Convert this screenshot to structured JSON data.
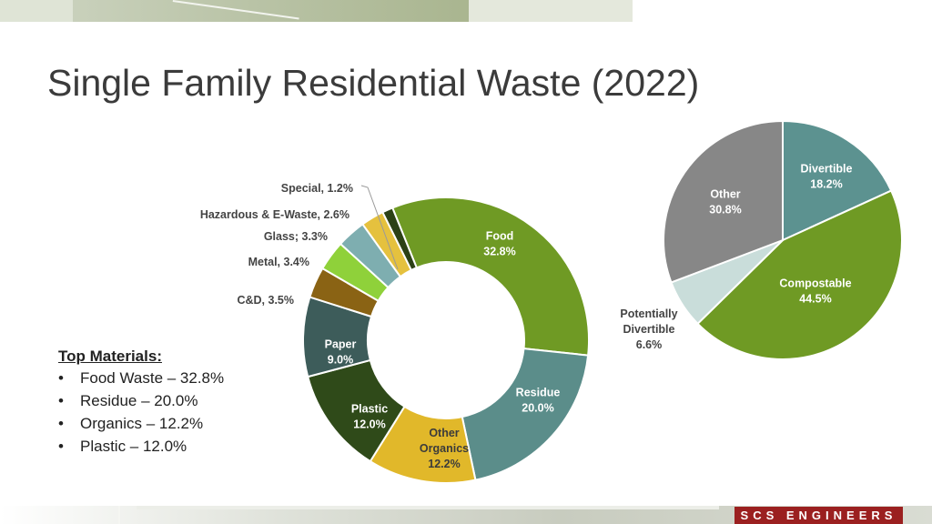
{
  "title": "Single Family Residential Waste (2022)",
  "top_materials": {
    "heading": "Top Materials:",
    "items": [
      "Food Waste – 32.8%",
      "Residue – 20.0%",
      "Organics – 12.2%",
      "Plastic – 12.0%"
    ]
  },
  "brand": "SCS ENGINEERS",
  "chart_data": [
    {
      "type": "pie",
      "variant": "donut",
      "slices": [
        {
          "name": "Food",
          "label": "Food\n32.8%",
          "value": 32.8,
          "color": "#6f9a24",
          "label_style": "inside-light"
        },
        {
          "name": "Residue",
          "label": "Residue\n20.0%",
          "value": 20.0,
          "color": "#5b8d8a",
          "label_style": "inside-light"
        },
        {
          "name": "Other Organics",
          "label": "Other\nOrganics\n12.2%",
          "value": 12.2,
          "color": "#e1b82a",
          "label_style": "inside-dark"
        },
        {
          "name": "Plastic",
          "label": "Plastic\n12.0%",
          "value": 12.0,
          "color": "#2f4a19",
          "label_style": "inside-light"
        },
        {
          "name": "Paper",
          "label": "Paper\n9.0%",
          "value": 9.0,
          "color": "#3d5c5a",
          "label_style": "inside-light"
        },
        {
          "name": "C&D",
          "label": "C&D, 3.5%",
          "value": 3.5,
          "color": "#8a6314",
          "label_style": "outside"
        },
        {
          "name": "Metal",
          "label": "Metal, 3.4%",
          "value": 3.4,
          "color": "#8fd13a",
          "label_style": "outside"
        },
        {
          "name": "Glass",
          "label": "Glass; 3.3%",
          "value": 3.3,
          "color": "#7eaeb0",
          "label_style": "outside"
        },
        {
          "name": "Hazardous & E-Waste",
          "label": "Hazardous & E-Waste, 2.6%",
          "value": 2.6,
          "color": "#e5c13e",
          "label_style": "outside"
        },
        {
          "name": "Special",
          "label": "Special, 1.2%",
          "value": 1.2,
          "color": "#2c4116",
          "label_style": "outside"
        }
      ]
    },
    {
      "type": "pie",
      "slices": [
        {
          "name": "Divertible",
          "label": "Divertible\n18.2%",
          "value": 18.2,
          "color": "#5c9290",
          "label_style": "inside-light"
        },
        {
          "name": "Compostable",
          "label": "Compostable\n44.5%",
          "value": 44.5,
          "color": "#6f9a24",
          "label_style": "inside-light"
        },
        {
          "name": "Potentially Divertible",
          "label": "Potentially\nDivertible\n6.6%",
          "value": 6.6,
          "color": "#c9ddda",
          "label_style": "outside"
        },
        {
          "name": "Other",
          "label": "Other\n30.8%",
          "value": 30.8,
          "color": "#878787",
          "label_style": "inside-light"
        }
      ]
    }
  ]
}
